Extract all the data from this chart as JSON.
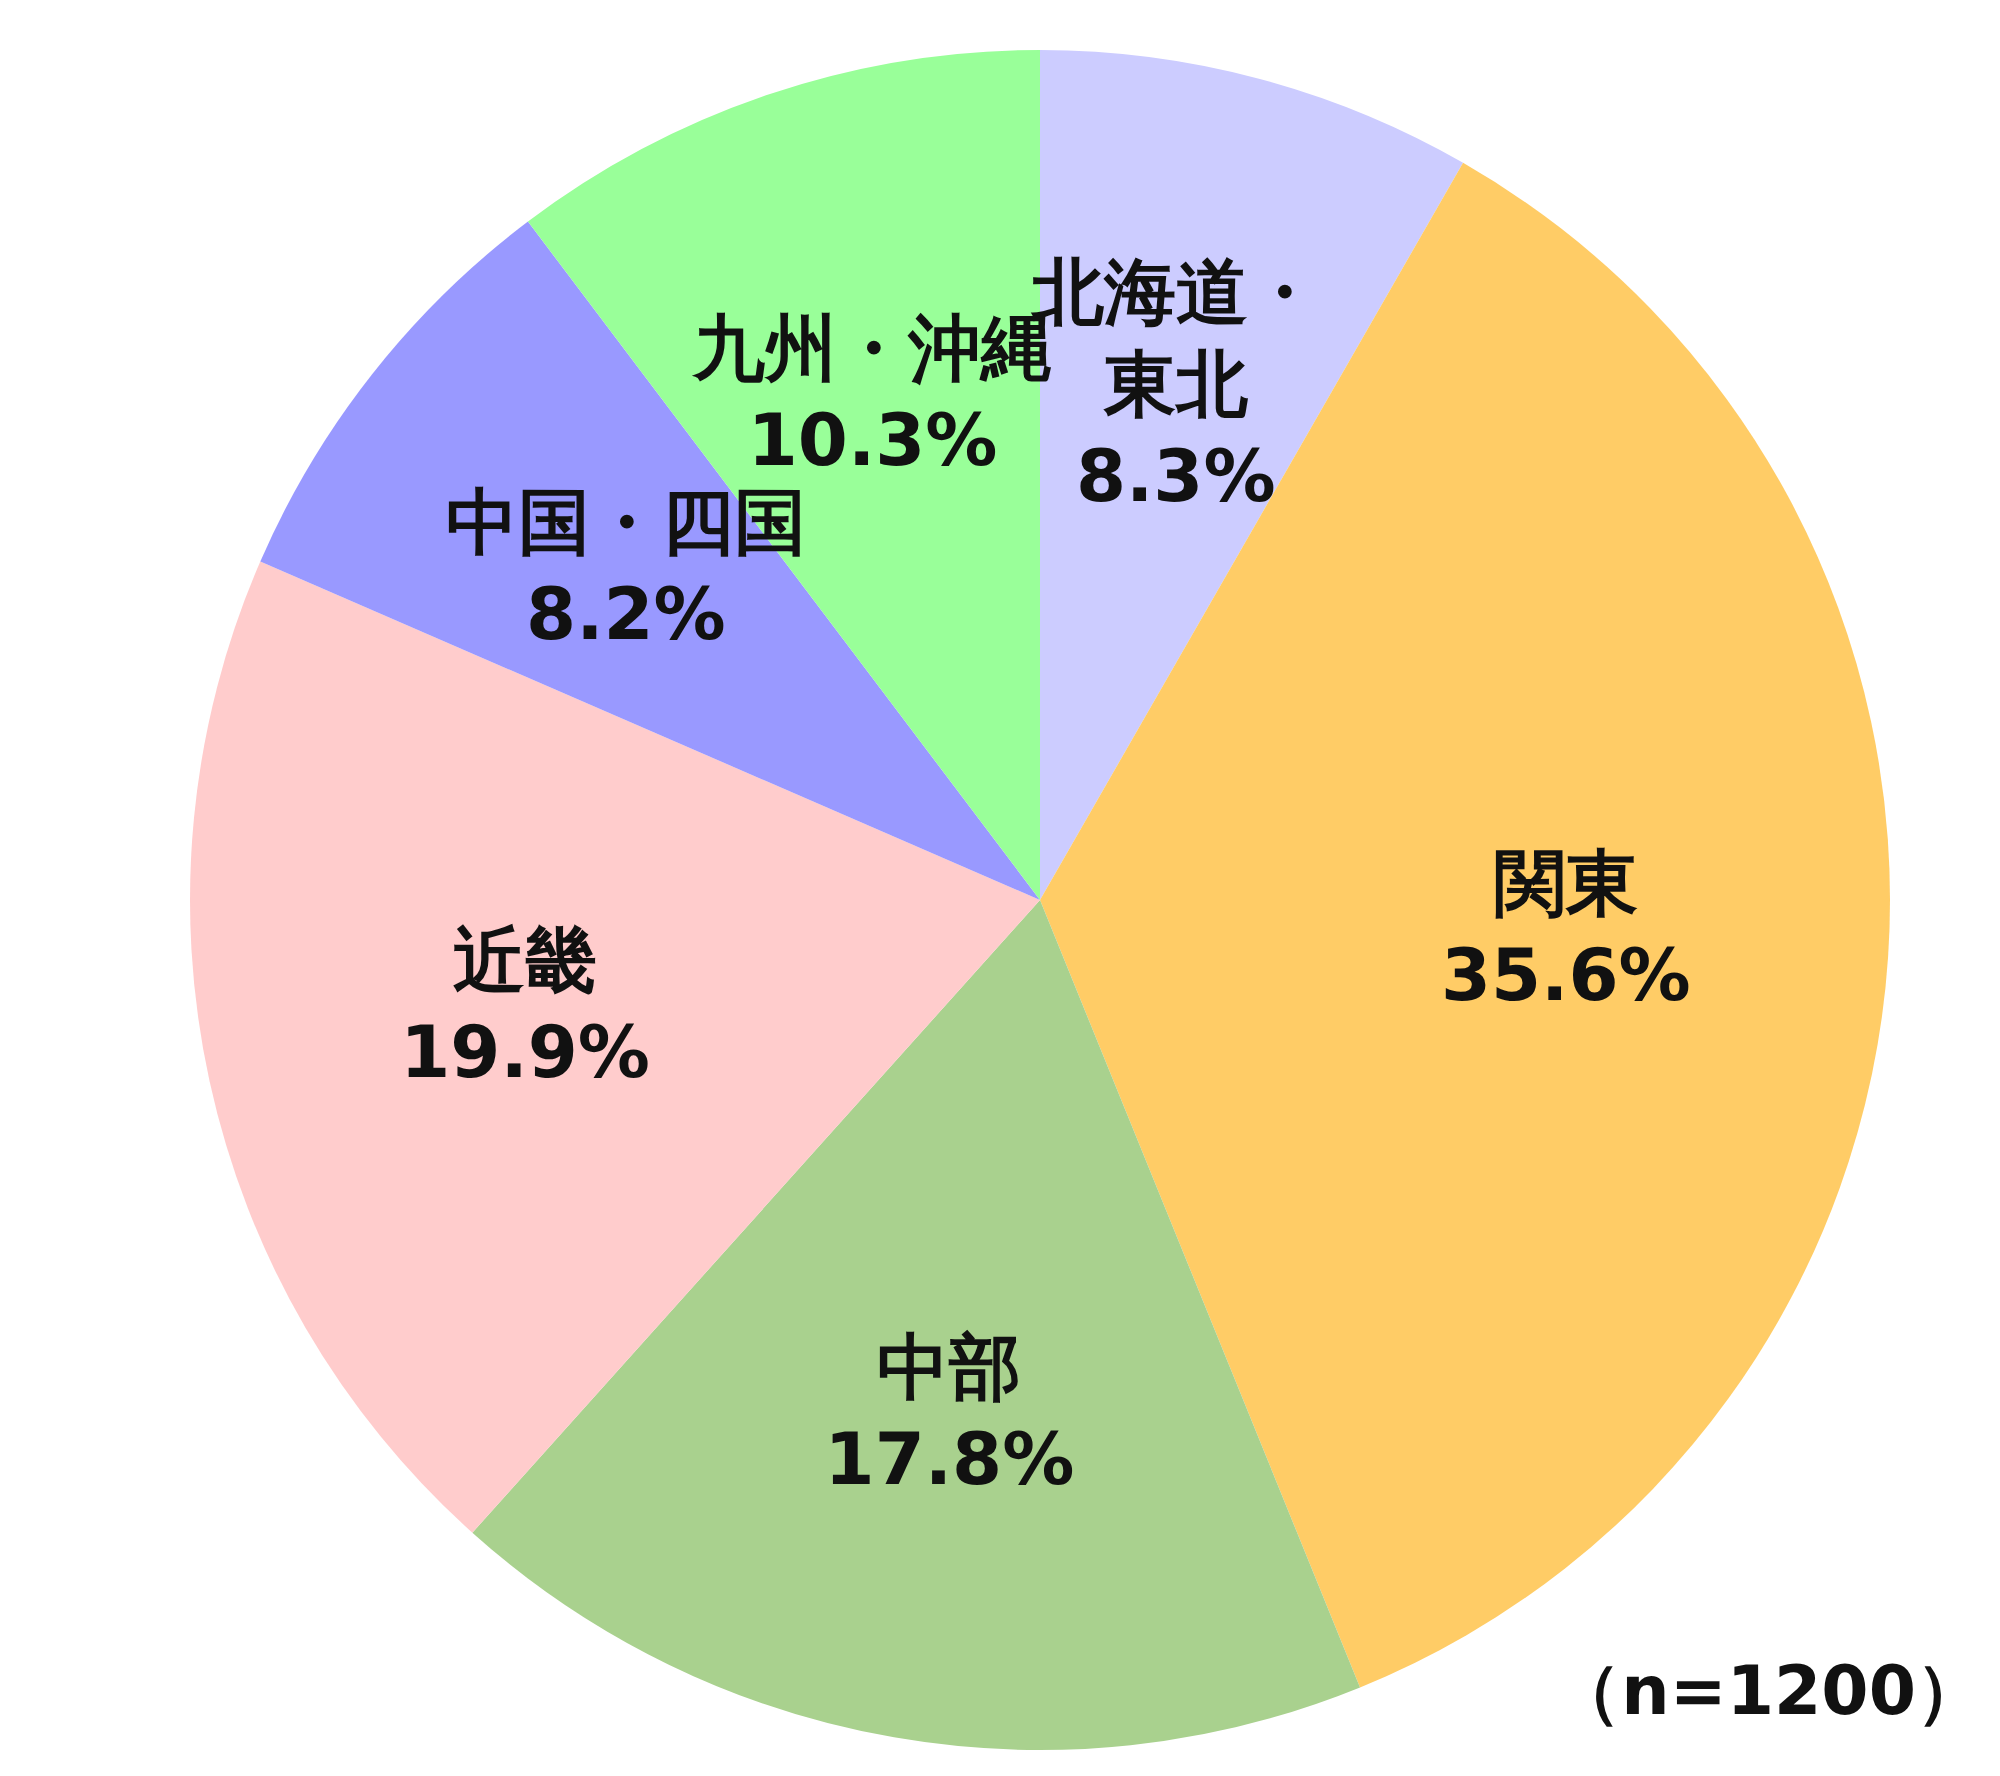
{
  "chart_data": {
    "type": "pie",
    "categories": [
      "北海道・東北",
      "関東",
      "中部",
      "近畿",
      "中国・四国",
      "九州・沖縄"
    ],
    "values": [
      8.3,
      35.6,
      17.8,
      19.9,
      8.2,
      10.3
    ],
    "value_labels": [
      "8.3%",
      "35.6%",
      "17.8%",
      "19.9%",
      "8.2%",
      "10.3%"
    ],
    "colors": [
      "#ccccff",
      "#ffcc66",
      "#a9d18e",
      "#ffcccc",
      "#9999ff",
      "#99ff99"
    ],
    "annotations": [
      "（n=1200）"
    ],
    "legend": false
  }
}
